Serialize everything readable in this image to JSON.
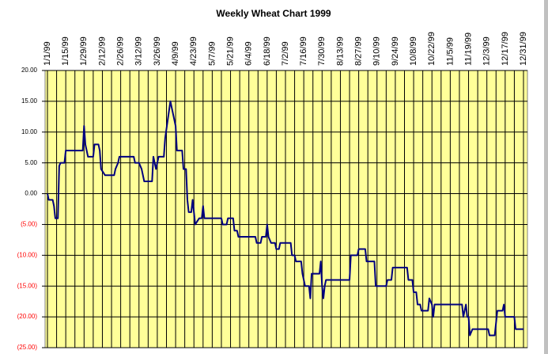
{
  "chart_data": {
    "type": "line",
    "title": "Weekly Wheat Chart 1999",
    "xlim": [
      "1/1/99",
      "12/31/99"
    ],
    "xticks": [
      "1/1/99",
      "1/15/99",
      "1/29/99",
      "2/12/99",
      "2/26/99",
      "3/12/99",
      "3/26/99",
      "4/9/99",
      "4/23/99",
      "5/7/99",
      "5/21/99",
      "6/4/99",
      "6/18/99",
      "7/2/99",
      "7/16/99",
      "7/30/99",
      "8/13/99",
      "8/27/99",
      "9/10/99",
      "9/24/99",
      "10/8/99",
      "10/22/99",
      "11/5/99",
      "11/19/99",
      "12/3/99",
      "12/17/99",
      "12/31/99"
    ],
    "ylim": [
      -25,
      20
    ],
    "yticks": [
      {
        "value": 20,
        "label": "20.00"
      },
      {
        "value": 15,
        "label": "15.00"
      },
      {
        "value": 10,
        "label": "10.00"
      },
      {
        "value": 5,
        "label": "5.00"
      },
      {
        "value": 0,
        "label": "0.00"
      },
      {
        "value": -5,
        "label": "(5.00)"
      },
      {
        "value": -10,
        "label": "(10.00)"
      },
      {
        "value": -15,
        "label": "(15.00)"
      },
      {
        "value": -20,
        "label": "(20.00)"
      },
      {
        "value": -25,
        "label": "(25.00)"
      }
    ],
    "negative_tick_color": "#ff0000",
    "grid": true,
    "minor_x_grid": true,
    "plot_color": "#ffff99",
    "x": [
      "1/1/99",
      "1/2/99",
      "1/5/99",
      "1/6/99",
      "1/7/99",
      "1/9/99",
      "1/10/99",
      "1/11/99",
      "1/14/99",
      "1/15/99",
      "1/28/99",
      "1/29/99",
      "1/30/99",
      "2/1/99",
      "2/5/99",
      "2/6/99",
      "2/9/99",
      "2/10/99",
      "2/11/99",
      "2/14/99",
      "2/21/99",
      "2/22/99",
      "2/24/99",
      "2/25/99",
      "3/8/99",
      "3/9/99",
      "3/12/99",
      "3/14/99",
      "3/16/99",
      "3/22/99",
      "3/23/99",
      "3/25/99",
      "3/27/99",
      "3/31/99",
      "4/1/99",
      "4/3/99",
      "4/5/99",
      "4/7/99",
      "4/9/99",
      "4/10/99",
      "4/14/99",
      "4/15/99",
      "4/17/99",
      "4/18/99",
      "4/19/99",
      "4/21/99",
      "4/22/99",
      "4/23/99",
      "4/24/99",
      "4/27/99",
      "4/29/99",
      "4/30/99",
      "5/1/99",
      "5/14/99",
      "5/15/99",
      "5/18/99",
      "5/19/99",
      "5/23/99",
      "5/24/99",
      "5/26/99",
      "5/27/99",
      "6/9/99",
      "6/10/99",
      "6/13/99",
      "6/14/99",
      "6/17/99",
      "6/18/99",
      "6/19/99",
      "6/21/99",
      "6/24/99",
      "6/25/99",
      "6/27/99",
      "6/28/99",
      "7/6/99",
      "7/7/99",
      "7/9/99",
      "7/10/99",
      "7/14/99",
      "7/15/99",
      "7/17/99",
      "7/20/99",
      "7/21/99",
      "7/22/99",
      "7/28/99",
      "7/29/99",
      "7/30/99",
      "7/31/99",
      "8/1/99",
      "8/2/99",
      "8/20/99",
      "8/21/99",
      "8/26/99",
      "8/27/99",
      "9/1/99",
      "9/2/99",
      "9/8/99",
      "9/9/99",
      "9/17/99",
      "9/18/99",
      "9/21/99",
      "9/22/99",
      "10/3/99",
      "10/4/99",
      "10/7/99",
      "10/8/99",
      "10/10/99",
      "10/11/99",
      "10/13/99",
      "10/14/99",
      "10/19/99",
      "10/20/99",
      "10/22/99",
      "10/23/99",
      "10/24/99",
      "11/14/99",
      "11/15/99",
      "11/17/99",
      "11/18/99",
      "11/19/99",
      "11/20/99",
      "11/22/99",
      "12/4/99",
      "12/5/99",
      "12/9/99",
      "12/10/99",
      "12/11/99",
      "12/15/99",
      "12/16/99",
      "12/17/99",
      "12/24/99",
      "12/25/99",
      "12/31/99"
    ],
    "series": [
      {
        "name": "Wheat",
        "color": "#000080",
        "values": [
          0,
          -1,
          -1,
          -2,
          -4,
          -4,
          4.5,
          5,
          5,
          7,
          7,
          11,
          8,
          6,
          6,
          8,
          8,
          7,
          4,
          3,
          3,
          4,
          5,
          6,
          6,
          5,
          5,
          4,
          2,
          2,
          6,
          4,
          6,
          6,
          9,
          12,
          15,
          13,
          11,
          7,
          7,
          4,
          4,
          -1,
          -3,
          -3,
          -1,
          -3,
          -5,
          -4,
          -4,
          -2,
          -4,
          -4,
          -5,
          -5,
          -4,
          -4,
          -6,
          -6,
          -7,
          -7,
          -8,
          -8,
          -7,
          -7,
          -5,
          -7,
          -8,
          -8,
          -9,
          -9,
          -8,
          -8,
          -10,
          -10,
          -11,
          -11,
          -13,
          -15,
          -15,
          -17,
          -13,
          -13,
          -11,
          -15,
          -17,
          -15,
          -14,
          -14,
          -10,
          -10,
          -9,
          -9,
          -11,
          -11,
          -15,
          -15,
          -14,
          -14,
          -12,
          -12,
          -14,
          -14,
          -16,
          -16,
          -18,
          -18,
          -19,
          -19,
          -17,
          -18,
          -20,
          -18,
          -18,
          -20,
          -18,
          -20,
          -20,
          -23,
          -22,
          -22,
          -23,
          -23,
          -21,
          -19,
          -19,
          -18,
          -20,
          -20,
          -22,
          -22
        ]
      }
    ]
  }
}
